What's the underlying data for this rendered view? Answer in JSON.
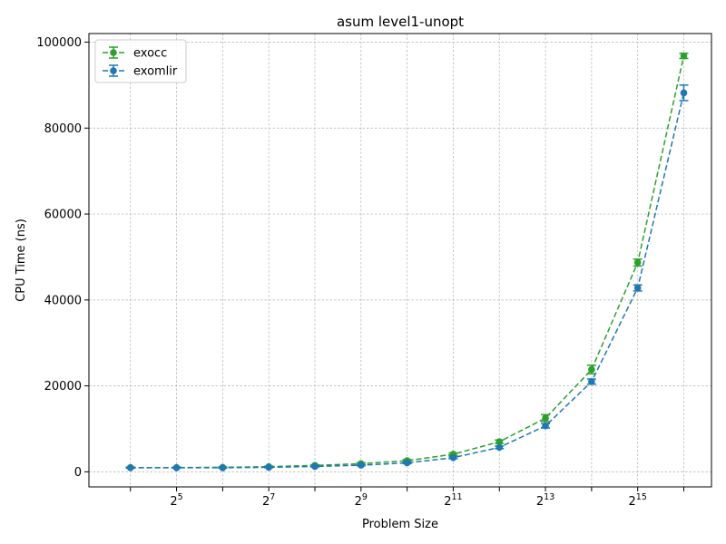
{
  "chart_data": {
    "type": "line",
    "title": "asum level1-unopt",
    "xlabel": "Problem Size",
    "ylabel": "CPU Time (ns)",
    "x_scale": "log2",
    "x": [
      16,
      32,
      64,
      128,
      256,
      512,
      1024,
      2048,
      4096,
      8192,
      16384,
      32768,
      65536
    ],
    "x_ticks": [
      {
        "base": "2",
        "exp": "5"
      },
      {
        "base": "2",
        "exp": "7"
      },
      {
        "base": "2",
        "exp": "9"
      },
      {
        "base": "2",
        "exp": "11"
      },
      {
        "base": "2",
        "exp": "13"
      },
      {
        "base": "2",
        "exp": "15"
      }
    ],
    "y_ticks": [
      "0",
      "20000",
      "40000",
      "60000",
      "80000",
      "100000"
    ],
    "ylim": [
      -3500,
      102000
    ],
    "xlim_exp": [
      3.1,
      16.6
    ],
    "grid": true,
    "legend_position": "top-left",
    "series": [
      {
        "name": "exocc",
        "color": "#2ca02c",
        "values": [
          1000,
          1000,
          1050,
          1200,
          1500,
          1900,
          2600,
          4100,
          7000,
          12500,
          23800,
          48700,
          96800
        ],
        "errors": [
          120,
          100,
          100,
          120,
          150,
          200,
          250,
          300,
          400,
          800,
          1000,
          800,
          600
        ]
      },
      {
        "name": "exomlir",
        "color": "#1f77b4",
        "values": [
          950,
          950,
          950,
          1050,
          1250,
          1550,
          2100,
          3300,
          5700,
          10700,
          21000,
          42800,
          88200
        ],
        "errors": [
          100,
          80,
          80,
          100,
          120,
          150,
          200,
          250,
          300,
          500,
          600,
          700,
          1800
        ]
      }
    ]
  }
}
